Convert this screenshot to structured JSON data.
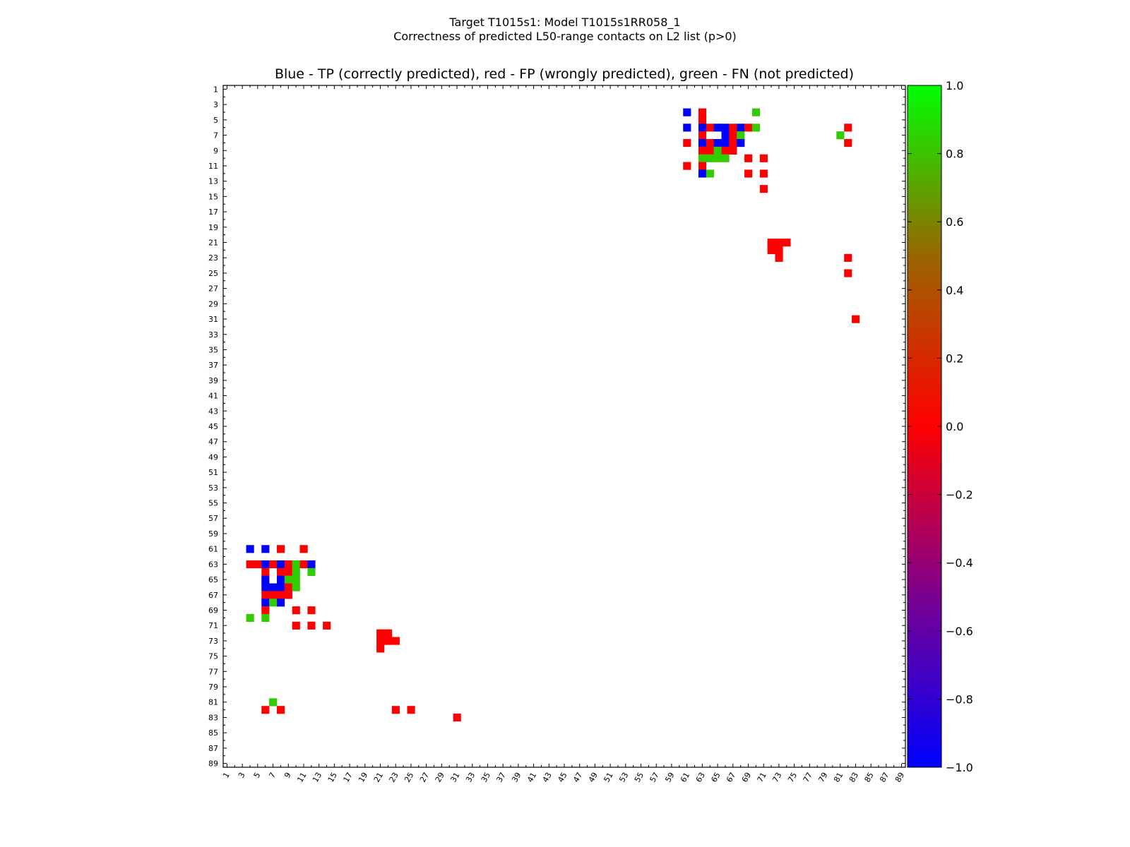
{
  "chart_data": {
    "type": "heatmap",
    "title_line1": "Target T1015s1: Model T1015s1RR058_1",
    "title_line2": "Correctness of predicted L50-range contacts on L2 list (p>0)",
    "subtitle": "Blue - TP (correctly predicted), red - FP (wrongly predicted), green - FN (not predicted)",
    "xlim": [
      1,
      89
    ],
    "ylim": [
      1,
      89
    ],
    "ticks": [
      1,
      3,
      5,
      7,
      9,
      11,
      13,
      15,
      17,
      19,
      21,
      23,
      25,
      27,
      29,
      31,
      33,
      35,
      37,
      39,
      41,
      43,
      45,
      47,
      49,
      51,
      53,
      55,
      57,
      59,
      61,
      63,
      65,
      67,
      69,
      71,
      73,
      75,
      77,
      79,
      81,
      83,
      85,
      87,
      89
    ],
    "colorbar": {
      "min": -1.0,
      "max": 1.0,
      "labels": [
        "1.0",
        "0.8",
        "0.6",
        "0.4",
        "0.2",
        "0.0",
        "−0.2",
        "−0.4",
        "−0.6",
        "−0.8",
        "−1.0"
      ],
      "label_values": [
        1.0,
        0.8,
        0.6,
        0.4,
        0.2,
        0.0,
        -0.2,
        -0.4,
        -0.6,
        -0.8,
        -1.0
      ]
    },
    "colors": {
      "TP": "#0000ff",
      "FP": "#ff0000",
      "FN": "#33cc00"
    },
    "upper_cells": [
      {
        "r": 4,
        "c": 61,
        "s": "TP"
      },
      {
        "r": 4,
        "c": 63,
        "s": "FP"
      },
      {
        "r": 4,
        "c": 70,
        "s": "FN"
      },
      {
        "r": 5,
        "c": 63,
        "s": "FP"
      },
      {
        "r": 6,
        "c": 61,
        "s": "TP"
      },
      {
        "r": 6,
        "c": 63,
        "s": "TP"
      },
      {
        "r": 6,
        "c": 64,
        "s": "FP"
      },
      {
        "r": 6,
        "c": 65,
        "s": "TP"
      },
      {
        "r": 6,
        "c": 66,
        "s": "TP"
      },
      {
        "r": 6,
        "c": 67,
        "s": "FP"
      },
      {
        "r": 6,
        "c": 68,
        "s": "TP"
      },
      {
        "r": 6,
        "c": 69,
        "s": "FP"
      },
      {
        "r": 6,
        "c": 70,
        "s": "FN"
      },
      {
        "r": 6,
        "c": 82,
        "s": "FP"
      },
      {
        "r": 7,
        "c": 63,
        "s": "FP"
      },
      {
        "r": 7,
        "c": 66,
        "s": "TP"
      },
      {
        "r": 7,
        "c": 67,
        "s": "FP"
      },
      {
        "r": 7,
        "c": 68,
        "s": "FN"
      },
      {
        "r": 7,
        "c": 81,
        "s": "FN"
      },
      {
        "r": 8,
        "c": 61,
        "s": "FP"
      },
      {
        "r": 8,
        "c": 63,
        "s": "TP"
      },
      {
        "r": 8,
        "c": 64,
        "s": "FP"
      },
      {
        "r": 8,
        "c": 65,
        "s": "TP"
      },
      {
        "r": 8,
        "c": 66,
        "s": "TP"
      },
      {
        "r": 8,
        "c": 67,
        "s": "FP"
      },
      {
        "r": 8,
        "c": 68,
        "s": "TP"
      },
      {
        "r": 8,
        "c": 82,
        "s": "FP"
      },
      {
        "r": 9,
        "c": 63,
        "s": "FP"
      },
      {
        "r": 9,
        "c": 64,
        "s": "FP"
      },
      {
        "r": 9,
        "c": 65,
        "s": "FN"
      },
      {
        "r": 9,
        "c": 66,
        "s": "FP"
      },
      {
        "r": 9,
        "c": 67,
        "s": "FP"
      },
      {
        "r": 10,
        "c": 63,
        "s": "FN"
      },
      {
        "r": 10,
        "c": 64,
        "s": "FN"
      },
      {
        "r": 10,
        "c": 65,
        "s": "FN"
      },
      {
        "r": 10,
        "c": 66,
        "s": "FN"
      },
      {
        "r": 10,
        "c": 69,
        "s": "FP"
      },
      {
        "r": 10,
        "c": 71,
        "s": "FP"
      },
      {
        "r": 11,
        "c": 61,
        "s": "FP"
      },
      {
        "r": 11,
        "c": 63,
        "s": "FP"
      },
      {
        "r": 12,
        "c": 63,
        "s": "TP"
      },
      {
        "r": 12,
        "c": 64,
        "s": "FN"
      },
      {
        "r": 12,
        "c": 69,
        "s": "FP"
      },
      {
        "r": 12,
        "c": 71,
        "s": "FP"
      },
      {
        "r": 14,
        "c": 71,
        "s": "FP"
      },
      {
        "r": 21,
        "c": 72,
        "s": "FP"
      },
      {
        "r": 21,
        "c": 73,
        "s": "FP"
      },
      {
        "r": 21,
        "c": 74,
        "s": "FP"
      },
      {
        "r": 22,
        "c": 72,
        "s": "FP"
      },
      {
        "r": 22,
        "c": 73,
        "s": "FP"
      },
      {
        "r": 23,
        "c": 73,
        "s": "FP"
      },
      {
        "r": 23,
        "c": 82,
        "s": "FP"
      },
      {
        "r": 25,
        "c": 82,
        "s": "FP"
      },
      {
        "r": 31,
        "c": 83,
        "s": "FP"
      }
    ]
  }
}
